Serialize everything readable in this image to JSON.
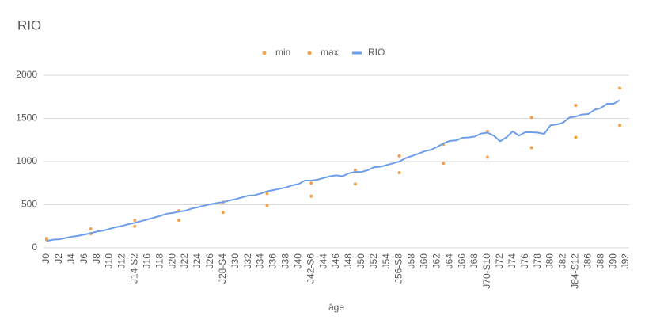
{
  "chart_data": {
    "type": "line",
    "title": "RIO",
    "x_label": "âge",
    "categories": [
      "J0",
      null,
      "J2",
      null,
      "J4",
      null,
      "J6",
      null,
      "J8",
      null,
      "J10",
      null,
      "J12",
      null,
      "J14-S2",
      null,
      "J16",
      null,
      "J18",
      null,
      "J20",
      null,
      "J22",
      null,
      "J24",
      null,
      "J26",
      null,
      "J28-S4",
      null,
      "J30",
      null,
      "J32",
      null,
      "J34",
      null,
      "J36",
      null,
      "J38",
      null,
      "J40",
      null,
      "J42-S6",
      null,
      "J44",
      null,
      "J46",
      null,
      "J48",
      null,
      "J50",
      null,
      "J52",
      null,
      "J54",
      null,
      "J56-S8",
      null,
      "J58",
      null,
      "J60",
      null,
      "J62",
      null,
      "J64",
      null,
      "J66",
      null,
      "J68",
      null,
      "J70-S10",
      null,
      "J72",
      null,
      "J74",
      null,
      "J76",
      null,
      "J78",
      null,
      "J80",
      null,
      "J82",
      null,
      "J84-S12",
      null,
      "J86",
      null,
      "J88",
      null,
      "J90",
      null,
      "J92"
    ],
    "series": [
      {
        "name": "min",
        "type": "scatter",
        "color": "#f4a04a",
        "values": [
          95,
          null,
          null,
          null,
          null,
          null,
          null,
          165,
          null,
          null,
          null,
          null,
          null,
          null,
          250,
          null,
          null,
          null,
          null,
          null,
          null,
          320,
          null,
          null,
          null,
          null,
          null,
          null,
          410,
          null,
          null,
          null,
          null,
          null,
          null,
          490,
          null,
          null,
          null,
          null,
          null,
          null,
          600,
          null,
          null,
          null,
          null,
          null,
          null,
          740,
          null,
          null,
          null,
          null,
          null,
          null,
          870,
          null,
          null,
          null,
          null,
          null,
          null,
          980,
          null,
          null,
          null,
          null,
          null,
          null,
          1050,
          null,
          null,
          null,
          null,
          null,
          null,
          1160,
          null,
          null,
          null,
          null,
          null,
          null,
          1280,
          null,
          null,
          null,
          null,
          null,
          null,
          1420,
          null
        ]
      },
      {
        "name": "max",
        "type": "scatter",
        "color": "#f4a04a",
        "values": [
          110,
          null,
          null,
          null,
          null,
          null,
          null,
          220,
          null,
          null,
          null,
          null,
          null,
          null,
          320,
          null,
          null,
          null,
          null,
          null,
          null,
          430,
          null,
          null,
          null,
          null,
          null,
          null,
          530,
          null,
          null,
          null,
          null,
          null,
          null,
          630,
          null,
          null,
          null,
          null,
          null,
          null,
          750,
          null,
          null,
          null,
          null,
          null,
          null,
          900,
          null,
          null,
          null,
          null,
          null,
          null,
          1065,
          null,
          null,
          null,
          null,
          null,
          null,
          1200,
          null,
          null,
          null,
          null,
          null,
          null,
          1350,
          null,
          null,
          null,
          null,
          null,
          null,
          1510,
          null,
          null,
          null,
          null,
          null,
          null,
          1650,
          null,
          null,
          null,
          null,
          null,
          null,
          1850,
          null
        ]
      },
      {
        "name": "RIO",
        "type": "line",
        "color": "#6d9eeb",
        "values": [
          80,
          95,
          100,
          115,
          130,
          140,
          155,
          170,
          190,
          200,
          220,
          240,
          255,
          275,
          290,
          310,
          330,
          350,
          370,
          395,
          405,
          420,
          430,
          455,
          470,
          490,
          505,
          520,
          530,
          550,
          565,
          585,
          605,
          610,
          630,
          655,
          670,
          685,
          700,
          725,
          740,
          780,
          780,
          790,
          810,
          830,
          840,
          830,
          865,
          880,
          880,
          900,
          935,
          940,
          960,
          980,
          1000,
          1040,
          1065,
          1090,
          1120,
          1135,
          1170,
          1210,
          1240,
          1245,
          1275,
          1280,
          1290,
          1325,
          1335,
          1300,
          1235,
          1280,
          1350,
          1300,
          1340,
          1340,
          1335,
          1320,
          1420,
          1430,
          1450,
          1510,
          1520,
          1545,
          1550,
          1600,
          1620,
          1670,
          1670,
          1710,
          null
        ]
      }
    ],
    "ylim": [
      0,
      2000
    ],
    "yticks": [
      0,
      500,
      1000,
      1500,
      2000
    ],
    "grid": true,
    "legend": "top"
  }
}
